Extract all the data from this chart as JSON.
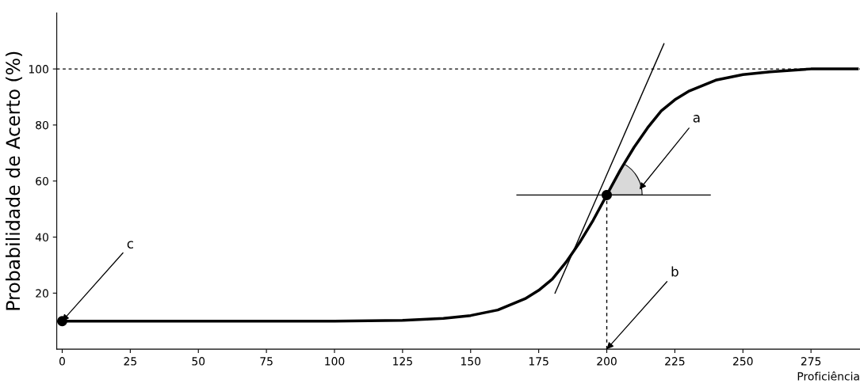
{
  "chart_data": {
    "type": "line",
    "xlabel": "Proficiência",
    "ylabel": "Probabilidade de Acerto (%)",
    "xlim": [
      -2,
      293
    ],
    "ylim": [
      0,
      120
    ],
    "xticks": [
      0,
      25,
      50,
      75,
      100,
      125,
      150,
      175,
      200,
      225,
      250,
      275
    ],
    "yticks": [
      20,
      40,
      60,
      80,
      100
    ],
    "grid": false,
    "series": [
      {
        "color": "#000000",
        "x": [
          0,
          25,
          50,
          75,
          100,
          125,
          140,
          150,
          160,
          170,
          175,
          180,
          185,
          190,
          195,
          200,
          205,
          210,
          215,
          220,
          225,
          230,
          240,
          250,
          260,
          275,
          292
        ],
        "values": [
          10,
          10,
          10,
          10,
          10,
          10.3,
          11,
          12,
          14,
          18,
          21,
          25,
          31,
          38,
          46,
          55,
          64,
          72,
          79,
          85,
          89,
          92,
          96,
          98,
          99,
          100,
          100
        ]
      },
      {
        "color": "#000000",
        "x": [
          181,
          221
        ],
        "values": [
          20,
          109
        ]
      },
      {
        "color": "#000000",
        "x": [
          167,
          238
        ],
        "values": [
          55,
          55
        ]
      },
      {
        "color": "#000000",
        "line_style": "dashed",
        "x": [
          200,
          200
        ],
        "values": [
          0,
          55
        ]
      },
      {
        "type": "scatter",
        "color": "#000000",
        "marker": "circle",
        "x": [
          0,
          200
        ],
        "values": [
          10,
          55
        ]
      }
    ],
    "ref_lines": [
      {
        "axis": "y",
        "value": 100,
        "line_style": "dashed",
        "color": "#000000"
      }
    ],
    "annotations": [
      "a",
      {
        "text": "b",
        "x": 200,
        "y": 0
      },
      {
        "text": "c",
        "x": 0,
        "y": 10
      }
    ]
  }
}
